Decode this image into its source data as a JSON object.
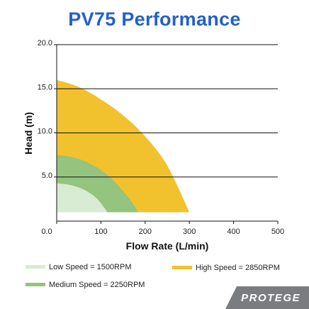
{
  "chart_data": {
    "type": "area",
    "title": "PV75 Performance",
    "xlabel": "Flow Rate (L/min)",
    "ylabel": "Head  (m)",
    "xlim": [
      0,
      500
    ],
    "ylim": [
      0,
      20
    ],
    "x_ticks": [
      "0.0",
      "100",
      "200",
      "300",
      "400",
      "500"
    ],
    "y_ticks": [
      "5.0",
      "10.0",
      "15.0",
      "20.0"
    ],
    "y_tick_values": [
      5,
      10,
      15,
      20
    ],
    "x_tick_values": [
      0,
      100,
      200,
      300,
      400,
      500
    ],
    "grid": "horizontal",
    "series": [
      {
        "name": "High Speed = 2850RPM",
        "color": "#f2c12e",
        "points": [
          [
            0,
            16.0
          ],
          [
            50,
            15.2
          ],
          [
            100,
            13.8
          ],
          [
            150,
            12.0
          ],
          [
            200,
            9.6
          ],
          [
            250,
            6.3
          ],
          [
            300,
            1.0
          ]
        ]
      },
      {
        "name": "Medium Speed = 2250RPM",
        "color": "#94c47d",
        "points": [
          [
            0,
            7.5
          ],
          [
            40,
            7.2
          ],
          [
            80,
            6.4
          ],
          [
            120,
            5.0
          ],
          [
            160,
            2.8
          ],
          [
            185,
            1.0
          ]
        ]
      },
      {
        "name": "Low Speed = 1500RPM",
        "color": "#d8ecd3",
        "points": [
          [
            0,
            4.3
          ],
          [
            30,
            4.1
          ],
          [
            60,
            3.6
          ],
          [
            90,
            2.6
          ],
          [
            115,
            1.0
          ]
        ]
      }
    ],
    "legend": [
      {
        "label": "Low Speed = 1500RPM",
        "color": "#d8ecd3"
      },
      {
        "label": "High Speed = 2850RPM",
        "color": "#f2c12e"
      },
      {
        "label": "Medium Speed = 2250RPM",
        "color": "#94c47d"
      }
    ]
  },
  "brand": "PROTEGE"
}
